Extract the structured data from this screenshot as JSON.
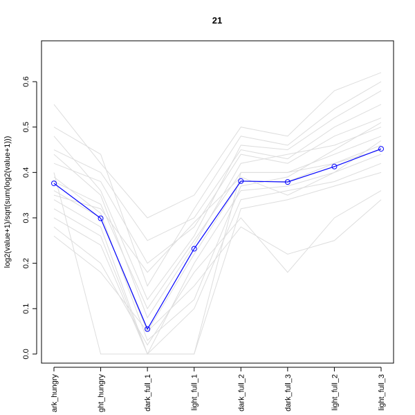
{
  "chart_data": {
    "type": "line",
    "title": "21",
    "xlabel": "",
    "ylabel": "log2(value+1)/sqrt(sum(log2(value+1)))",
    "categories": [
      "dark_hungry",
      "light_hungry",
      "dark_full_1",
      "light_full_1",
      "dark_full_2",
      "dark_full_3",
      "light_full_2",
      "light_full_3"
    ],
    "category_labels_visible": [
      "ark_hungry",
      "ght_hungry",
      "dark_full_1",
      "light_full_1",
      "dark_full_2",
      "dark_full_3",
      "light_full_2",
      "light_full_3"
    ],
    "ylim": [
      -0.02,
      0.69
    ],
    "yticks": [
      0.0,
      0.1,
      0.2,
      0.3,
      0.4,
      0.5,
      0.6
    ],
    "yticklabels": [
      "0.0",
      "0.1",
      "0.2",
      "0.3",
      "0.4",
      "0.5",
      "0.6"
    ],
    "highlight_series": {
      "values": [
        0.376,
        0.299,
        0.055,
        0.232,
        0.381,
        0.379,
        0.413,
        0.452
      ],
      "color": "#0000ff"
    },
    "background_series": {
      "color": "#dddddd",
      "profiles": [
        [
          0.45,
          0.4,
          0.25,
          0.3,
          0.45,
          0.43,
          0.5,
          0.55
        ],
        [
          0.42,
          0.38,
          0.2,
          0.28,
          0.44,
          0.42,
          0.48,
          0.52
        ],
        [
          0.38,
          0.33,
          0.1,
          0.25,
          0.4,
          0.4,
          0.44,
          0.48
        ],
        [
          0.36,
          0.3,
          0.05,
          0.22,
          0.38,
          0.38,
          0.42,
          0.46
        ],
        [
          0.34,
          0.28,
          0.0,
          0.2,
          0.36,
          0.37,
          0.4,
          0.44
        ],
        [
          0.32,
          0.26,
          0.0,
          0.1,
          0.34,
          0.36,
          0.38,
          0.42
        ],
        [
          0.3,
          0.24,
          0.0,
          0.0,
          0.32,
          0.34,
          0.37,
          0.4
        ],
        [
          0.4,
          0.0,
          0.0,
          0.0,
          0.4,
          0.4,
          0.42,
          0.45
        ],
        [
          0.55,
          0.42,
          0.3,
          0.35,
          0.5,
          0.48,
          0.58,
          0.62
        ],
        [
          0.5,
          0.44,
          0.15,
          0.32,
          0.48,
          0.46,
          0.54,
          0.6
        ],
        [
          0.28,
          0.2,
          0.02,
          0.18,
          0.3,
          0.18,
          0.3,
          0.36
        ],
        [
          0.26,
          0.18,
          0.05,
          0.15,
          0.28,
          0.22,
          0.25,
          0.34
        ],
        [
          0.48,
          0.36,
          0.12,
          0.26,
          0.46,
          0.45,
          0.52,
          0.58
        ],
        [
          0.44,
          0.35,
          0.08,
          0.24,
          0.42,
          0.44,
          0.46,
          0.5
        ],
        [
          0.35,
          0.32,
          0.18,
          0.29,
          0.39,
          0.35,
          0.4,
          0.47
        ],
        [
          0.39,
          0.31,
          0.03,
          0.12,
          0.37,
          0.39,
          0.45,
          0.51
        ]
      ]
    }
  }
}
